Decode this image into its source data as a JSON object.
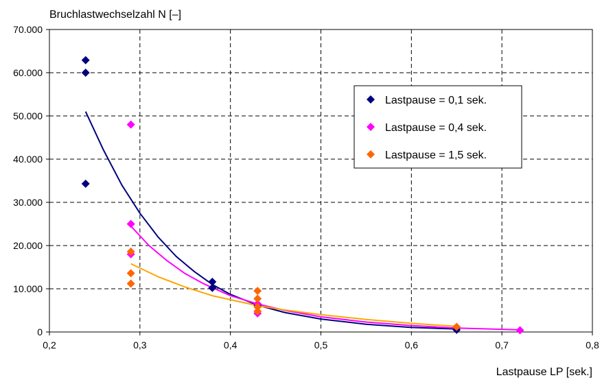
{
  "chart_data": {
    "type": "scatter",
    "title": "",
    "ylabel": "Bruchlastwechselzahl N [–]",
    "xlabel": "Lastpause LP [sek.]",
    "xlim": [
      0.2,
      0.8
    ],
    "ylim": [
      0,
      70000
    ],
    "x_ticks": [
      0.2,
      0.3,
      0.4,
      0.5,
      0.6,
      0.7,
      0.8
    ],
    "x_tick_labels": [
      "0,2",
      "0,3",
      "0,4",
      "0,5",
      "0,6",
      "0,7",
      "0,8"
    ],
    "y_ticks": [
      0,
      10000,
      20000,
      30000,
      40000,
      50000,
      60000,
      70000
    ],
    "y_tick_labels": [
      "0",
      "10.000",
      "20.000",
      "30.000",
      "40.000",
      "50.000",
      "60.000",
      "70.000"
    ],
    "grid": true,
    "legend_position": "top-right",
    "series": [
      {
        "name": "Lastpause = 0,1 sek.",
        "color": "#000080",
        "marker": "diamond",
        "points": [
          [
            0.24,
            62900
          ],
          [
            0.24,
            60000
          ],
          [
            0.24,
            34300
          ],
          [
            0.38,
            11600
          ],
          [
            0.38,
            10200
          ],
          [
            0.43,
            6200
          ],
          [
            0.65,
            500
          ]
        ],
        "trend": [
          [
            0.24,
            51000
          ],
          [
            0.26,
            42000
          ],
          [
            0.28,
            34000
          ],
          [
            0.3,
            27500
          ],
          [
            0.32,
            22000
          ],
          [
            0.34,
            17500
          ],
          [
            0.36,
            14000
          ],
          [
            0.38,
            11000
          ],
          [
            0.4,
            8700
          ],
          [
            0.43,
            6200
          ],
          [
            0.46,
            4500
          ],
          [
            0.5,
            3000
          ],
          [
            0.55,
            1800
          ],
          [
            0.6,
            1050
          ],
          [
            0.65,
            700
          ]
        ]
      },
      {
        "name": "Lastpause = 0,4 sek.",
        "color": "#FF00FF",
        "marker": "diamond",
        "points": [
          [
            0.29,
            48000
          ],
          [
            0.29,
            25000
          ],
          [
            0.29,
            18000
          ],
          [
            0.43,
            6500
          ],
          [
            0.43,
            4300
          ],
          [
            0.72,
            400
          ]
        ],
        "trend": [
          [
            0.29,
            24500
          ],
          [
            0.31,
            20000
          ],
          [
            0.33,
            16500
          ],
          [
            0.35,
            13500
          ],
          [
            0.37,
            11200
          ],
          [
            0.4,
            8400
          ],
          [
            0.43,
            6500
          ],
          [
            0.46,
            5000
          ],
          [
            0.5,
            3500
          ],
          [
            0.55,
            2300
          ],
          [
            0.6,
            1500
          ],
          [
            0.65,
            900
          ],
          [
            0.72,
            500
          ]
        ]
      },
      {
        "name": "Lastpause = 1,5 sek.",
        "color": "#FF6600",
        "marker": "diamond",
        "points": [
          [
            0.29,
            18600
          ],
          [
            0.29,
            13600
          ],
          [
            0.29,
            11200
          ],
          [
            0.43,
            9500
          ],
          [
            0.43,
            7700
          ],
          [
            0.43,
            5800
          ],
          [
            0.43,
            4800
          ],
          [
            0.65,
            1200
          ]
        ],
        "trend": [
          [
            0.29,
            15800
          ],
          [
            0.32,
            12800
          ],
          [
            0.35,
            10400
          ],
          [
            0.38,
            8400
          ],
          [
            0.41,
            7000
          ],
          [
            0.43,
            6100
          ],
          [
            0.46,
            5100
          ],
          [
            0.5,
            4000
          ],
          [
            0.55,
            2900
          ],
          [
            0.6,
            2000
          ],
          [
            0.65,
            1300
          ]
        ]
      }
    ]
  }
}
